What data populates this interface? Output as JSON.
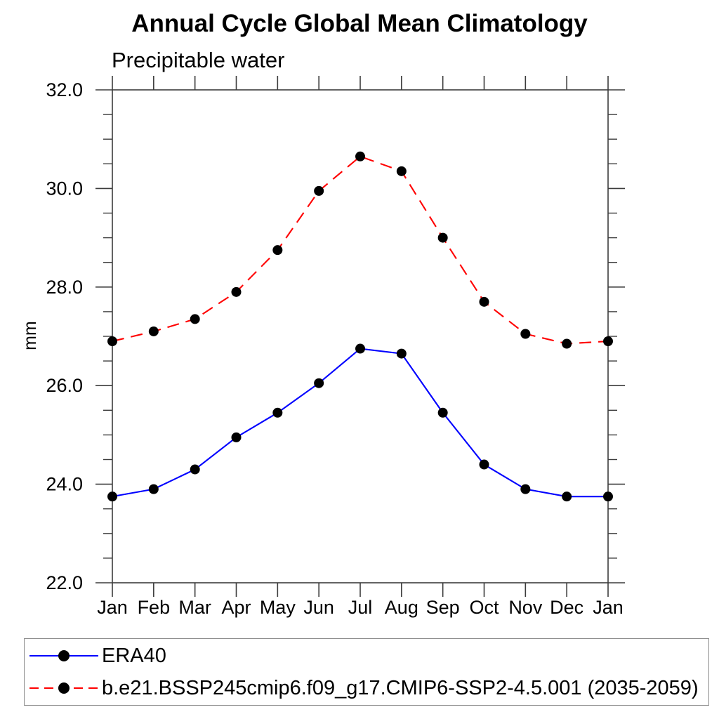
{
  "chart_data": {
    "type": "line",
    "title": "Annual Cycle Global Mean Climatology",
    "subtitle": "Precipitable water",
    "ylabel": "mm",
    "ylim": [
      22.0,
      32.0
    ],
    "y_major_ticks": [
      22,
      24,
      26,
      28,
      30,
      32
    ],
    "y_tick_labels": [
      "22.0",
      "24.0",
      "26.0",
      "28.0",
      "30.0",
      "32.0"
    ],
    "y_minor_step": 0.5,
    "categories": [
      "Jan",
      "Feb",
      "Mar",
      "Apr",
      "May",
      "Jun",
      "Jul",
      "Aug",
      "Sep",
      "Oct",
      "Nov",
      "Dec",
      "Jan"
    ],
    "grid": false,
    "legend_position": "bottom",
    "axis_color": "#3c3c3c",
    "marker_color": "#000000",
    "series": [
      {
        "name": "ERA40",
        "color": "#0000ff",
        "line_style": "solid",
        "marker": "circle",
        "values": [
          23.75,
          23.9,
          24.3,
          24.95,
          25.45,
          26.05,
          26.75,
          26.65,
          25.45,
          24.4,
          23.9,
          23.75,
          23.75
        ]
      },
      {
        "name": "b.e21.BSSP245cmip6.f09_g17.CMIP6-SSP2-4.5.001 (2035-2059)",
        "color": "#ff0000",
        "line_style": "dashed",
        "marker": "circle",
        "values": [
          26.9,
          27.1,
          27.35,
          27.9,
          28.75,
          29.95,
          30.65,
          30.35,
          29.0,
          27.7,
          27.05,
          26.85,
          26.9
        ]
      }
    ]
  }
}
